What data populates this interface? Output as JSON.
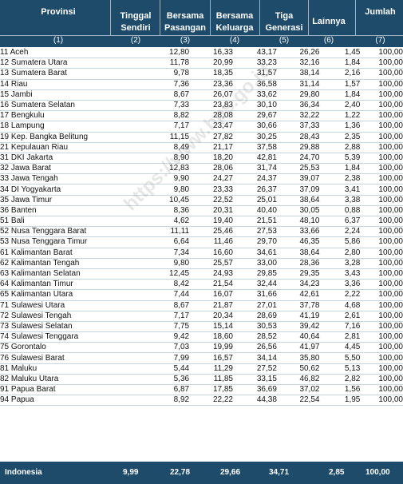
{
  "header": {
    "provinsi": "Provinsi",
    "col2": [
      "Tinggal",
      "Sendiri"
    ],
    "col3": [
      "Bersama",
      "Pasangan"
    ],
    "col4": [
      "Bersama",
      "Keluarga"
    ],
    "col5": [
      "Tiga",
      "Generasi"
    ],
    "col6": "Lainnya",
    "col7": "Jumlah",
    "numbers": [
      "(1)",
      "(2)",
      "(3)",
      "(4)",
      "(5)",
      "(6)",
      "(7)"
    ]
  },
  "rows": [
    [
      "11 Aceh",
      "12,80",
      "16,33",
      "43,17",
      "26,26",
      "1,45",
      "100,00"
    ],
    [
      "12 Sumatera Utara",
      "11,78",
      "20,99",
      "33,23",
      "32,16",
      "1,84",
      "100,00"
    ],
    [
      "13 Sumatera Barat",
      "9,78",
      "18,35",
      "31,57",
      "38,14",
      "2,16",
      "100,00"
    ],
    [
      "14 Riau",
      "7,36",
      "23,36",
      "36,58",
      "31,14",
      "1,57",
      "100,00"
    ],
    [
      "15 Jambi",
      "8,67",
      "26,07",
      "33,62",
      "29,80",
      "1,84",
      "100,00"
    ],
    [
      "16 Sumatera Selatan",
      "7,33",
      "23,83",
      "30,10",
      "36,34",
      "2,40",
      "100,00"
    ],
    [
      "17 Bengkulu",
      "8,82",
      "28,08",
      "29,67",
      "32,22",
      "1,22",
      "100,00"
    ],
    [
      "18 Lampung",
      "7,17",
      "23,47",
      "30,66",
      "37,33",
      "1,36",
      "100,00"
    ],
    [
      "19 Kep. Bangka Belitung",
      "11,15",
      "27,82",
      "30,25",
      "28,43",
      "2,35",
      "100,00"
    ],
    [
      "21 Kepulauan Riau",
      "8,49",
      "21,17",
      "37,58",
      "29,88",
      "2,88",
      "100,00"
    ],
    [
      "31 DKI Jakarta",
      "8,90",
      "18,20",
      "42,81",
      "24,70",
      "5,39",
      "100,00"
    ],
    [
      "32 Jawa Barat",
      "12,83",
      "28,06",
      "31,74",
      "25,53",
      "1,84",
      "100,00"
    ],
    [
      "33 Jawa Tengah",
      "9,90",
      "24,27",
      "24,37",
      "39,07",
      "2,38",
      "100,00"
    ],
    [
      "34 DI Yogyakarta",
      "9,80",
      "23,33",
      "26,37",
      "37,09",
      "3,41",
      "100,00"
    ],
    [
      "35 Jawa Timur",
      "10,45",
      "22,52",
      "25,01",
      "38,64",
      "3,38",
      "100,00"
    ],
    [
      "36 Banten",
      "8,36",
      "20,31",
      "40,40",
      "30,05",
      "0,88",
      "100,00"
    ],
    [
      "51 Bali",
      "4,62",
      "19,40",
      "21,51",
      "48,10",
      "6,37",
      "100,00"
    ],
    [
      "52 Nusa Tenggara Barat",
      "11,11",
      "25,46",
      "27,53",
      "33,66",
      "2,24",
      "100,00"
    ],
    [
      "53 Nusa Tenggara Timur",
      "6,64",
      "11,46",
      "29,70",
      "46,35",
      "5,86",
      "100,00"
    ],
    [
      "61 Kalimantan Barat",
      "7,34",
      "16,60",
      "34,61",
      "38,64",
      "2,80",
      "100,00"
    ],
    [
      "62 Kalimantan Tengah",
      "9,80",
      "25,57",
      "33,00",
      "28,36",
      "3,28",
      "100,00"
    ],
    [
      "63 Kalimantan Selatan",
      "12,45",
      "24,93",
      "29,85",
      "29,35",
      "3,43",
      "100,00"
    ],
    [
      "64 Kalimantan Timur",
      "8,42",
      "21,54",
      "32,44",
      "34,23",
      "3,36",
      "100,00"
    ],
    [
      "65 Kalimantan Utara",
      "7,44",
      "16,07",
      "31,66",
      "42,61",
      "2,22",
      "100,00"
    ],
    [
      "71 Sulawesi Utara",
      "8,67",
      "21,87",
      "27,01",
      "37,78",
      "4,68",
      "100,00"
    ],
    [
      "72 Sulawesi Tengah",
      "7,17",
      "20,34",
      "28,69",
      "41,19",
      "2,61",
      "100,00"
    ],
    [
      "73 Sulawesi Selatan",
      "7,75",
      "15,14",
      "30,53",
      "39,42",
      "7,16",
      "100,00"
    ],
    [
      "74 Sulawesi Tenggara",
      "9,42",
      "18,60",
      "28,52",
      "40,64",
      "2,81",
      "100,00"
    ],
    [
      "75 Gorontalo",
      "7,03",
      "19,99",
      "26,56",
      "41,97",
      "4,45",
      "100,00"
    ],
    [
      "76 Sulawesi Barat",
      "7,99",
      "16,57",
      "34,14",
      "35,80",
      "5,50",
      "100,00"
    ],
    [
      "81 Maluku",
      "5,44",
      "11,29",
      "27,52",
      "50,62",
      "5,13",
      "100,00"
    ],
    [
      "82 Maluku Utara",
      "5,36",
      "11,85",
      "33,15",
      "46,82",
      "2,82",
      "100,00"
    ],
    [
      "91 Papua Barat",
      "6,87",
      "17,85",
      "36,69",
      "37,02",
      "1,56",
      "100,00"
    ],
    [
      "94 Papua",
      "8,92",
      "22,22",
      "44,38",
      "22,54",
      "1,95",
      "100,00"
    ]
  ],
  "footer": [
    "Indonesia",
    "9,99",
    "22,78",
    "29,66",
    "34,71",
    "2,85",
    "100,00"
  ],
  "watermark": "https://www.bps.go.id",
  "colors": {
    "header_bg": "#1d4b69",
    "header_text": "#ffffff",
    "row_line": "#c7d5df"
  }
}
